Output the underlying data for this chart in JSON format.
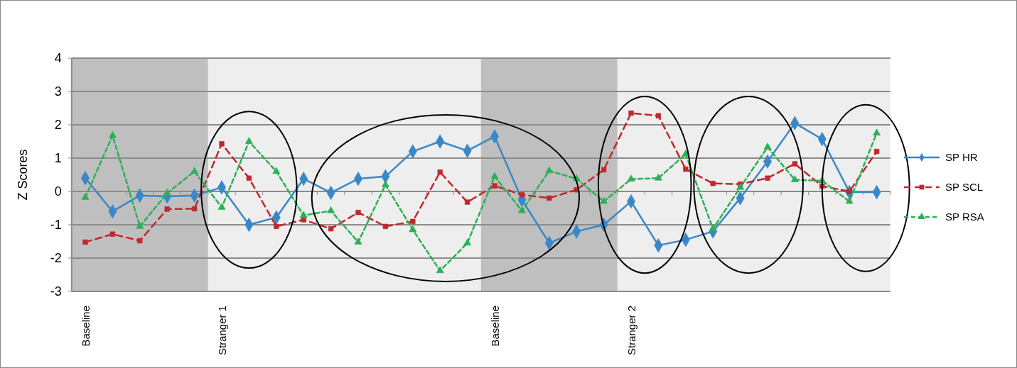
{
  "chart_data": {
    "type": "line",
    "ylabel": "Z Scores",
    "categories": [
      "Baseline",
      null,
      null,
      null,
      null,
      "Stranger 1",
      null,
      null,
      null,
      null,
      null,
      null,
      null,
      null,
      null,
      "Baseline",
      null,
      null,
      null,
      null,
      "Stranger 2",
      null,
      null,
      null,
      null,
      null,
      null,
      null,
      null,
      null
    ],
    "series": [
      {
        "name": "SP HR",
        "color": "#3a87c8",
        "marker": "diamond",
        "line_style": "solid",
        "values": [
          0.4,
          -0.6,
          -0.12,
          -0.15,
          -0.12,
          0.12,
          -1.0,
          -0.78,
          0.38,
          -0.04,
          0.38,
          0.45,
          1.2,
          1.5,
          1.22,
          1.65,
          -0.25,
          -1.55,
          -1.2,
          -1.0,
          -0.3,
          -1.62,
          -1.45,
          -1.2,
          -0.2,
          0.9,
          2.05,
          1.57,
          -0.02,
          -0.02
        ]
      },
      {
        "name": "SP SCL",
        "color": "#c0282d",
        "marker": "square",
        "line_style": "dashed",
        "values": [
          -1.52,
          -1.28,
          -1.48,
          -0.53,
          -0.52,
          1.43,
          0.4,
          -1.05,
          -0.85,
          -1.12,
          -0.63,
          -1.05,
          -0.9,
          0.58,
          -0.32,
          0.17,
          -0.1,
          -0.2,
          0.05,
          0.65,
          2.35,
          2.27,
          0.67,
          0.24,
          0.22,
          0.4,
          0.83,
          0.16,
          0,
          1.2
        ]
      },
      {
        "name": "SP RSA",
        "color": "#2bb056",
        "marker": "triangle",
        "line_style": "dotted",
        "values": [
          -0.18,
          1.68,
          -1.05,
          -0.05,
          0.6,
          -0.48,
          1.5,
          0.6,
          -0.72,
          -0.58,
          -1.52,
          0.2,
          -1.15,
          -2.38,
          -1.55,
          0.45,
          -0.58,
          0.62,
          0.38,
          -0.3,
          0.37,
          0.4,
          1.12,
          -1.12,
          0.12,
          1.33,
          0.35,
          0.32,
          -0.3,
          1.75
        ]
      }
    ],
    "ylim": [
      -3,
      4
    ],
    "yticks": [
      -3,
      -2,
      -1,
      0,
      1,
      2,
      3,
      4
    ],
    "grid": "y",
    "legend": "right"
  }
}
